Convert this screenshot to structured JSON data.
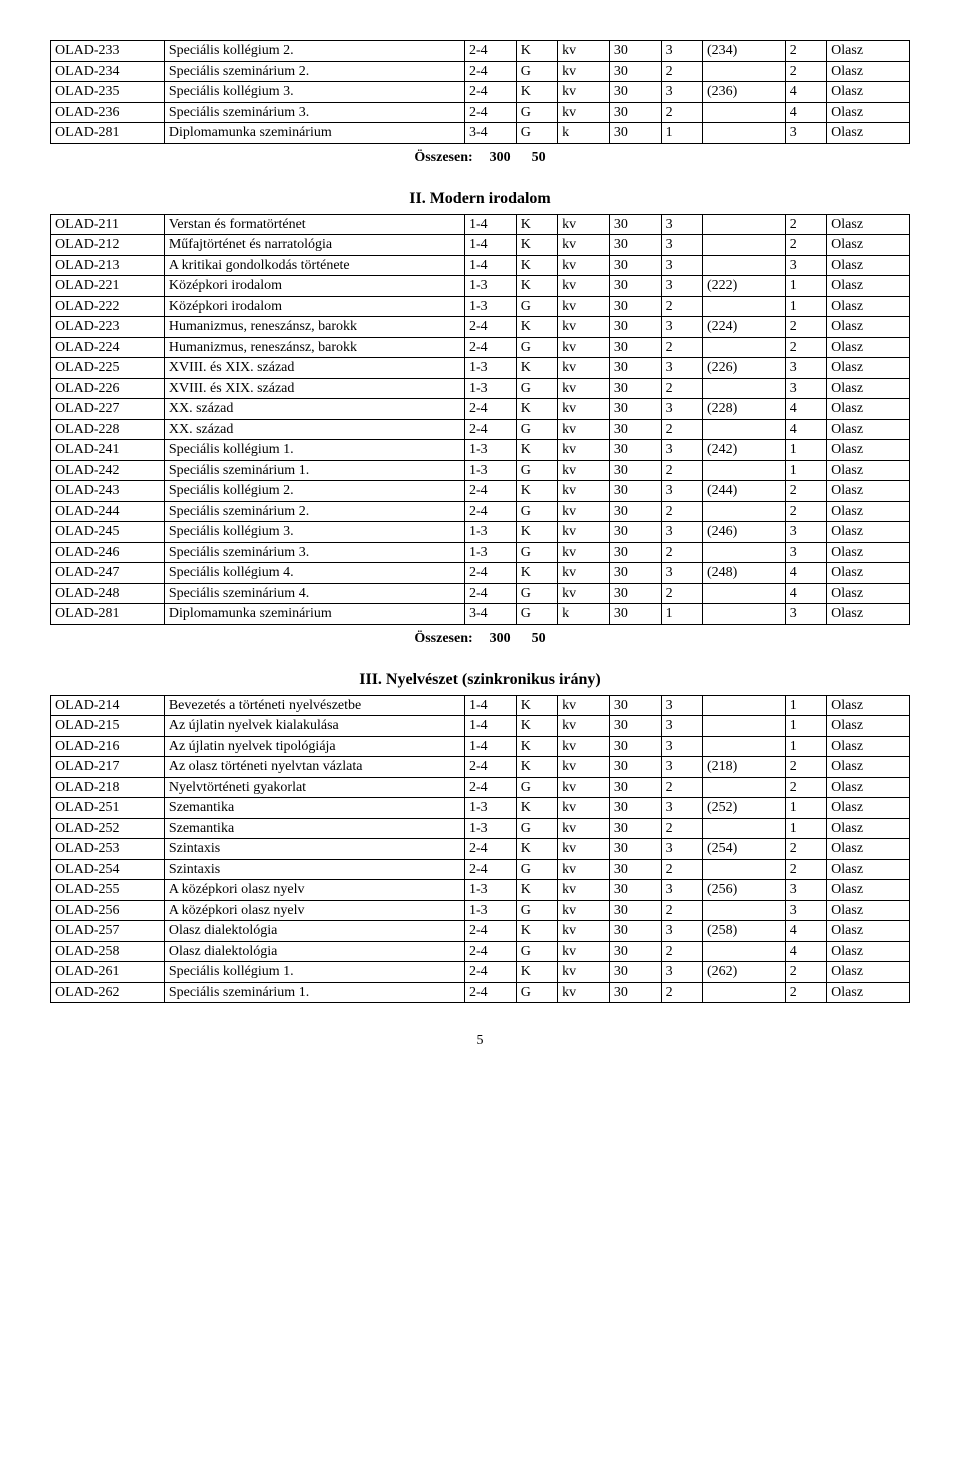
{
  "summary": {
    "label": "Összesen:",
    "v1": "300",
    "v2": "50"
  },
  "sections": {
    "s2": {
      "title": "II. Modern irodalom"
    },
    "s3": {
      "title": "III. Nyelvészet (szinkronikus irány)"
    }
  },
  "page_number": "5",
  "tables": {
    "t1": {
      "rows": [
        [
          "OLAD-233",
          "Speciális kollégium 2.",
          "2-4",
          "K",
          "kv",
          "30",
          "3",
          "(234)",
          "2",
          "Olasz"
        ],
        [
          "OLAD-234",
          "Speciális szeminárium 2.",
          "2-4",
          "G",
          "kv",
          "30",
          "2",
          "",
          "2",
          "Olasz"
        ],
        [
          "OLAD-235",
          "Speciális kollégium 3.",
          "2-4",
          "K",
          "kv",
          "30",
          "3",
          "(236)",
          "4",
          "Olasz"
        ],
        [
          "OLAD-236",
          "Speciális szeminárium 3.",
          "2-4",
          "G",
          "kv",
          "30",
          "2",
          "",
          "4",
          "Olasz"
        ],
        [
          "OLAD-281",
          "Diplomamunka szeminárium",
          "3-4",
          "G",
          "k",
          "30",
          "1",
          "",
          "3",
          "Olasz"
        ]
      ]
    },
    "t2": {
      "rows": [
        [
          "OLAD-211",
          "Verstan és formatörténet",
          "1-4",
          "K",
          "kv",
          "30",
          "3",
          "",
          "2",
          "Olasz"
        ],
        [
          "OLAD-212",
          "Műfajtörténet és narratológia",
          "1-4",
          "K",
          "kv",
          "30",
          "3",
          "",
          "2",
          "Olasz"
        ],
        [
          "OLAD-213",
          "A kritikai gondolkodás története",
          "1-4",
          "K",
          "kv",
          "30",
          "3",
          "",
          "3",
          "Olasz"
        ],
        [
          "OLAD-221",
          "Középkori irodalom",
          "1-3",
          "K",
          "kv",
          "30",
          "3",
          "(222)",
          "1",
          "Olasz"
        ],
        [
          "OLAD-222",
          "Középkori irodalom",
          "1-3",
          "G",
          "kv",
          "30",
          "2",
          "",
          "1",
          "Olasz"
        ],
        [
          "OLAD-223",
          "Humanizmus, reneszánsz, barokk",
          "2-4",
          "K",
          "kv",
          "30",
          "3",
          "(224)",
          "2",
          "Olasz"
        ],
        [
          "OLAD-224",
          "Humanizmus, reneszánsz, barokk",
          "2-4",
          "G",
          "kv",
          "30",
          "2",
          "",
          "2",
          "Olasz"
        ],
        [
          "OLAD-225",
          "XVIII. és XIX. század",
          "1-3",
          "K",
          "kv",
          "30",
          "3",
          "(226)",
          "3",
          "Olasz"
        ],
        [
          "OLAD-226",
          "XVIII. és XIX. század",
          "1-3",
          "G",
          "kv",
          "30",
          "2",
          "",
          "3",
          "Olasz"
        ],
        [
          "OLAD-227",
          "XX. század",
          "2-4",
          "K",
          "kv",
          "30",
          "3",
          "(228)",
          "4",
          "Olasz"
        ],
        [
          "OLAD-228",
          "XX. század",
          "2-4",
          "G",
          "kv",
          "30",
          "2",
          "",
          "4",
          "Olasz"
        ],
        [
          "OLAD-241",
          "Speciális kollégium 1.",
          "1-3",
          "K",
          "kv",
          "30",
          "3",
          "(242)",
          "1",
          "Olasz"
        ],
        [
          "OLAD-242",
          "Speciális szeminárium 1.",
          "1-3",
          "G",
          "kv",
          "30",
          "2",
          "",
          "1",
          "Olasz"
        ],
        [
          "OLAD-243",
          "Speciális kollégium 2.",
          "2-4",
          "K",
          "kv",
          "30",
          "3",
          "(244)",
          "2",
          "Olasz"
        ],
        [
          "OLAD-244",
          "Speciális szeminárium 2.",
          "2-4",
          "G",
          "kv",
          "30",
          "2",
          "",
          "2",
          "Olasz"
        ],
        [
          "OLAD-245",
          "Speciális kollégium 3.",
          "1-3",
          "K",
          "kv",
          "30",
          "3",
          "(246)",
          "3",
          "Olasz"
        ],
        [
          "OLAD-246",
          "Speciális szeminárium 3.",
          "1-3",
          "G",
          "kv",
          "30",
          "2",
          "",
          "3",
          "Olasz"
        ],
        [
          "OLAD-247",
          "Speciális kollégium 4.",
          "2-4",
          "K",
          "kv",
          "30",
          "3",
          "(248)",
          "4",
          "Olasz"
        ],
        [
          "OLAD-248",
          "Speciális szeminárium 4.",
          "2-4",
          "G",
          "kv",
          "30",
          "2",
          "",
          "4",
          "Olasz"
        ],
        [
          "OLAD-281",
          "Diplomamunka szeminárium",
          "3-4",
          "G",
          "k",
          "30",
          "1",
          "",
          "3",
          "Olasz"
        ]
      ]
    },
    "t3": {
      "rows": [
        [
          "OLAD-214",
          "Bevezetés a történeti nyelvészetbe",
          "1-4",
          "K",
          "kv",
          "30",
          "3",
          "",
          "1",
          "Olasz"
        ],
        [
          "OLAD-215",
          "Az újlatin nyelvek kialakulása",
          "1-4",
          "K",
          "kv",
          "30",
          "3",
          "",
          "1",
          "Olasz"
        ],
        [
          "OLAD-216",
          "Az újlatin nyelvek tipológiája",
          "1-4",
          "K",
          "kv",
          "30",
          "3",
          "",
          "1",
          "Olasz"
        ],
        [
          "OLAD-217",
          "Az olasz történeti nyelvtan vázlata",
          "2-4",
          "K",
          "kv",
          "30",
          "3",
          "(218)",
          "2",
          "Olasz"
        ],
        [
          "OLAD-218",
          "Nyelvtörténeti gyakorlat",
          "2-4",
          "G",
          "kv",
          "30",
          "2",
          "",
          "2",
          "Olasz"
        ],
        [
          "OLAD-251",
          "Szemantika",
          "1-3",
          "K",
          "kv",
          "30",
          "3",
          "(252)",
          "1",
          "Olasz"
        ],
        [
          "OLAD-252",
          "Szemantika",
          "1-3",
          "G",
          "kv",
          "30",
          "2",
          "",
          "1",
          "Olasz"
        ],
        [
          "OLAD-253",
          "Szintaxis",
          "2-4",
          "K",
          "kv",
          "30",
          "3",
          "(254)",
          "2",
          "Olasz"
        ],
        [
          "OLAD-254",
          "Szintaxis",
          "2-4",
          "G",
          "kv",
          "30",
          "2",
          "",
          "2",
          "Olasz"
        ],
        [
          "OLAD-255",
          "A középkori olasz nyelv",
          "1-3",
          "K",
          "kv",
          "30",
          "3",
          "(256)",
          "3",
          "Olasz"
        ],
        [
          "OLAD-256",
          "A középkori olasz nyelv",
          "1-3",
          "G",
          "kv",
          "30",
          "2",
          "",
          "3",
          "Olasz"
        ],
        [
          "OLAD-257",
          "Olasz dialektológia",
          "2-4",
          "K",
          "kv",
          "30",
          "3",
          "(258)",
          "4",
          "Olasz"
        ],
        [
          "OLAD-258",
          "Olasz dialektológia",
          "2-4",
          "G",
          "kv",
          "30",
          "2",
          "",
          "4",
          "Olasz"
        ],
        [
          "OLAD-261",
          "Speciális kollégium 1.",
          "2-4",
          "K",
          "kv",
          "30",
          "3",
          "(262)",
          "2",
          "Olasz"
        ],
        [
          "OLAD-262",
          "Speciális szeminárium 1.",
          "2-4",
          "G",
          "kv",
          "30",
          "2",
          "",
          "2",
          "Olasz"
        ]
      ]
    }
  }
}
